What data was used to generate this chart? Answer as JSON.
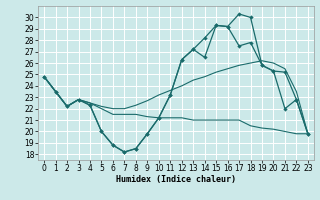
{
  "xlabel": "Humidex (Indice chaleur)",
  "xlim": [
    -0.5,
    23.5
  ],
  "ylim": [
    17.5,
    31.0
  ],
  "xticks": [
    0,
    1,
    2,
    3,
    4,
    5,
    6,
    7,
    8,
    9,
    10,
    11,
    12,
    13,
    14,
    15,
    16,
    17,
    18,
    19,
    20,
    21,
    22,
    23
  ],
  "yticks": [
    18,
    19,
    20,
    21,
    22,
    23,
    24,
    25,
    26,
    27,
    28,
    29,
    30
  ],
  "bg_color": "#cce9e9",
  "grid_color": "#ffffff",
  "line_color": "#1a6b6b",
  "line1_x": [
    0,
    1,
    2,
    3,
    4,
    5,
    6,
    7,
    8,
    9,
    10,
    11,
    12,
    13,
    14,
    15,
    16,
    17,
    18,
    19,
    20,
    21,
    22,
    23
  ],
  "line1_y": [
    24.8,
    23.5,
    22.2,
    22.8,
    22.3,
    20.0,
    18.8,
    18.2,
    18.5,
    19.8,
    21.2,
    23.2,
    26.3,
    27.2,
    26.5,
    29.3,
    29.2,
    30.3,
    30.0,
    25.8,
    25.3,
    25.2,
    22.8,
    19.8
  ],
  "line2_x": [
    0,
    1,
    2,
    3,
    4,
    5,
    6,
    7,
    8,
    9,
    10,
    11,
    12,
    13,
    14,
    15,
    16,
    17,
    18,
    19,
    20,
    21,
    22,
    23
  ],
  "line2_y": [
    24.8,
    23.5,
    22.2,
    22.8,
    22.3,
    20.0,
    18.8,
    18.2,
    18.5,
    19.8,
    21.2,
    23.2,
    26.3,
    27.2,
    28.2,
    29.3,
    29.2,
    27.5,
    27.8,
    25.8,
    25.3,
    22.0,
    22.8,
    19.8
  ],
  "line3_x": [
    0,
    1,
    2,
    3,
    4,
    5,
    6,
    7,
    8,
    9,
    10,
    11,
    12,
    13,
    14,
    15,
    16,
    17,
    18,
    19,
    20,
    21,
    22,
    23
  ],
  "line3_y": [
    24.8,
    23.5,
    22.2,
    22.8,
    22.5,
    22.2,
    22.0,
    22.0,
    22.3,
    22.7,
    23.2,
    23.6,
    24.0,
    24.5,
    24.8,
    25.2,
    25.5,
    25.8,
    26.0,
    26.2,
    26.0,
    25.5,
    23.5,
    19.8
  ],
  "line4_x": [
    0,
    1,
    2,
    3,
    4,
    5,
    6,
    7,
    8,
    9,
    10,
    11,
    12,
    13,
    14,
    15,
    16,
    17,
    18,
    19,
    20,
    21,
    22,
    23
  ],
  "line4_y": [
    24.8,
    23.5,
    22.2,
    22.8,
    22.5,
    22.0,
    21.5,
    21.5,
    21.5,
    21.3,
    21.2,
    21.2,
    21.2,
    21.0,
    21.0,
    21.0,
    21.0,
    21.0,
    20.5,
    20.3,
    20.2,
    20.0,
    19.8,
    19.8
  ]
}
